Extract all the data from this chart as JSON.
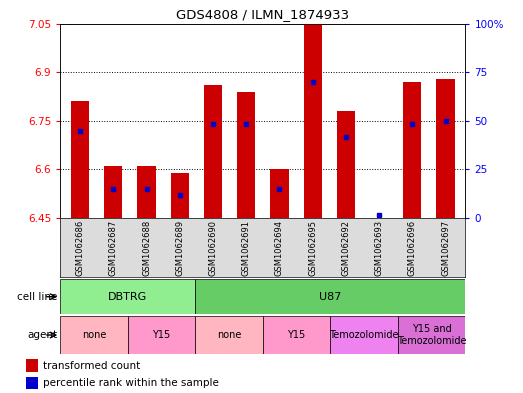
{
  "title": "GDS4808 / ILMN_1874933",
  "samples": [
    "GSM1062686",
    "GSM1062687",
    "GSM1062688",
    "GSM1062689",
    "GSM1062690",
    "GSM1062691",
    "GSM1062694",
    "GSM1062695",
    "GSM1062692",
    "GSM1062693",
    "GSM1062696",
    "GSM1062697"
  ],
  "red_values": [
    6.81,
    6.61,
    6.61,
    6.59,
    6.86,
    6.84,
    6.6,
    7.05,
    6.78,
    6.45,
    6.87,
    6.88
  ],
  "blue_values": [
    6.72,
    6.54,
    6.54,
    6.52,
    6.74,
    6.74,
    6.54,
    6.87,
    6.7,
    6.46,
    6.74,
    6.75
  ],
  "ylim_left": [
    6.45,
    7.05
  ],
  "ylim_right": [
    0,
    100
  ],
  "yticks_left": [
    6.45,
    6.6,
    6.75,
    6.9,
    7.05
  ],
  "yticks_right": [
    0,
    25,
    50,
    75,
    100
  ],
  "ytick_labels_left": [
    "6.45",
    "6.6",
    "6.75",
    "6.9",
    "7.05"
  ],
  "ytick_labels_right": [
    "0",
    "25",
    "50",
    "75",
    "100%"
  ],
  "cell_line_groups": [
    {
      "label": "DBTRG",
      "start": 0,
      "end": 4,
      "color": "#90EE90"
    },
    {
      "label": "U87",
      "start": 4,
      "end": 12,
      "color": "#66CC66"
    }
  ],
  "agent_groups": [
    {
      "label": "none",
      "start": 0,
      "end": 2,
      "color": "#FFB6C1"
    },
    {
      "label": "Y15",
      "start": 2,
      "end": 4,
      "color": "#FF99CC"
    },
    {
      "label": "none",
      "start": 4,
      "end": 6,
      "color": "#FFB6C1"
    },
    {
      "label": "Y15",
      "start": 6,
      "end": 8,
      "color": "#FF99CC"
    },
    {
      "label": "Temozolomide",
      "start": 8,
      "end": 10,
      "color": "#EE82EE"
    },
    {
      "label": "Y15 and\nTemozolomide",
      "start": 10,
      "end": 12,
      "color": "#DA70D6"
    }
  ],
  "bar_color": "#CC0000",
  "blue_color": "#0000CC",
  "bg_color": "#DCDCDC",
  "plot_bg": "#FFFFFF",
  "legend_red": "transformed count",
  "legend_blue": "percentile rank within the sample",
  "figsize": [
    5.23,
    3.93
  ],
  "dpi": 100
}
